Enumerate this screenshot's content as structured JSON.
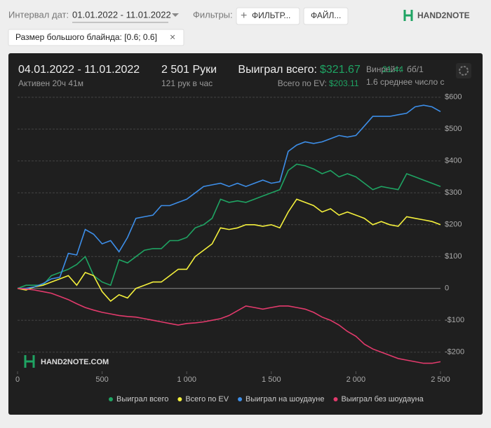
{
  "toolbar": {
    "date_label": "Интервал дат:",
    "date_range": "01.01.2022 - 11.01.2022",
    "filters_label": "Фильтры:",
    "filter_button": "ФИЛЬТР...",
    "file_button": "ФАЙЛ...",
    "logo": "HAND2NOTE"
  },
  "filter_chip": "Размер большого блайнда: [0.6; 0.6]",
  "summary": {
    "period": "04.01.2022 - 11.01.2022",
    "active": "Активен 20ч 41м",
    "hands": "2 501 Руки",
    "hands_per_hour": "121 рук в час",
    "won_label": "Выиграл всего:",
    "won_value": "$321.67",
    "ev_label": "Всего по EV:",
    "ev_value": "$203.11",
    "winrate_label": "Винрейт:",
    "winrate_value": "21.44",
    "winrate_unit": "бб/1",
    "avg_text": "1.6 среднее число с",
    "watermark": "HAND2NOTE.COM"
  },
  "chart_data": {
    "type": "line",
    "x": [
      0,
      50,
      100,
      150,
      200,
      250,
      300,
      350,
      400,
      450,
      500,
      550,
      600,
      650,
      700,
      750,
      800,
      850,
      900,
      950,
      1000,
      1050,
      1100,
      1150,
      1200,
      1250,
      1300,
      1350,
      1400,
      1450,
      1500,
      1550,
      1600,
      1650,
      1700,
      1750,
      1800,
      1850,
      1900,
      1950,
      2000,
      2050,
      2100,
      2150,
      2200,
      2250,
      2300,
      2350,
      2400,
      2450,
      2500
    ],
    "series": [
      {
        "name": "Выиграл всего",
        "color": "#1fa463",
        "values": [
          0,
          10,
          10,
          10,
          40,
          50,
          60,
          75,
          100,
          40,
          20,
          10,
          90,
          80,
          100,
          120,
          125,
          125,
          150,
          150,
          160,
          190,
          200,
          220,
          280,
          270,
          275,
          270,
          280,
          290,
          300,
          310,
          370,
          390,
          385,
          375,
          360,
          370,
          350,
          360,
          350,
          330,
          310,
          320,
          315,
          310,
          360,
          350,
          340,
          330,
          320
        ]
      },
      {
        "name": "Всего по EV",
        "color": "#f4f03c",
        "values": [
          0,
          -5,
          5,
          10,
          20,
          30,
          40,
          10,
          50,
          40,
          -10,
          -40,
          -20,
          -30,
          0,
          10,
          20,
          20,
          40,
          60,
          60,
          100,
          120,
          140,
          190,
          185,
          190,
          200,
          200,
          195,
          200,
          190,
          240,
          280,
          270,
          260,
          240,
          250,
          230,
          240,
          230,
          220,
          200,
          210,
          200,
          195,
          225,
          220,
          215,
          210,
          200
        ]
      },
      {
        "name": "Выиграл на шоудауне",
        "color": "#3d8ee8",
        "values": [
          0,
          0,
          5,
          15,
          30,
          35,
          110,
          105,
          185,
          170,
          140,
          150,
          115,
          160,
          220,
          225,
          230,
          260,
          260,
          270,
          280,
          300,
          320,
          325,
          330,
          320,
          330,
          320,
          330,
          340,
          330,
          335,
          430,
          450,
          460,
          455,
          460,
          470,
          480,
          475,
          480,
          510,
          540,
          540,
          540,
          545,
          550,
          570,
          575,
          570,
          555
        ]
      },
      {
        "name": "Выиграл без шоудауна",
        "color": "#e23a6c",
        "values": [
          0,
          -2,
          -5,
          -10,
          -15,
          -25,
          -35,
          -48,
          -60,
          -68,
          -75,
          -80,
          -85,
          -88,
          -90,
          -95,
          -100,
          -105,
          -110,
          -115,
          -110,
          -108,
          -105,
          -100,
          -95,
          -85,
          -70,
          -55,
          -60,
          -65,
          -60,
          -55,
          -55,
          -60,
          -65,
          -75,
          -90,
          -100,
          -115,
          -135,
          -150,
          -175,
          -190,
          -200,
          -210,
          -220,
          -225,
          -230,
          -235,
          -235,
          -230
        ]
      }
    ],
    "xlim": [
      0,
      2500
    ],
    "ylim": [
      -260,
      615
    ],
    "xticks": [
      0,
      500,
      {
        "value": 1000,
        "label": "1 000"
      },
      {
        "value": 1500,
        "label": "1 500"
      },
      {
        "value": 2000,
        "label": "2 000"
      },
      {
        "value": 2500,
        "label": "2 500"
      }
    ],
    "yticks": [
      {
        "value": 600,
        "label": "$600"
      },
      {
        "value": 500,
        "label": "$500"
      },
      {
        "value": 400,
        "label": "$400"
      },
      {
        "value": 300,
        "label": "$300"
      },
      {
        "value": 200,
        "label": "$200"
      },
      {
        "value": 100,
        "label": "$100"
      },
      0,
      {
        "value": -100,
        "label": "-$100"
      },
      {
        "value": -200,
        "label": "-$200"
      }
    ],
    "grid": true
  }
}
